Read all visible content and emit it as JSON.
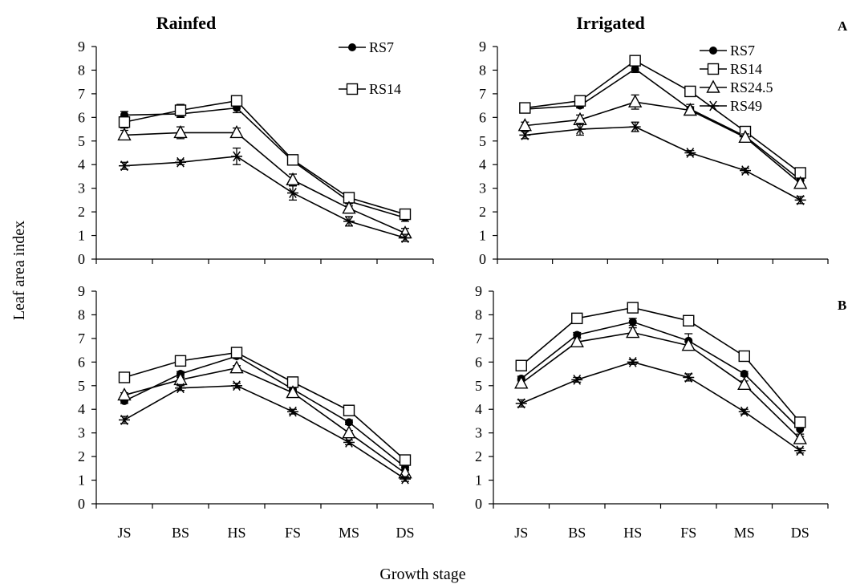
{
  "figure": {
    "col_titles": [
      "Rainfed",
      "Irrigated"
    ],
    "row_labels": [
      "A",
      "B"
    ],
    "ylabel": "Leaf area index",
    "xlabel": "Growth stage"
  },
  "chart_data": [
    {
      "type": "line",
      "row": "A",
      "column": "Rainfed",
      "categories": [
        "JS",
        "BS",
        "HS",
        "FS",
        "MS",
        "DS"
      ],
      "ylim": [
        0,
        9
      ],
      "yticks": [
        0,
        1,
        2,
        3,
        4,
        5,
        6,
        7,
        8,
        9
      ],
      "legend": [
        "RS7",
        "RS14"
      ],
      "series": [
        {
          "name": "RS7",
          "marker": "circle",
          "values": [
            6.1,
            6.15,
            6.4,
            4.15,
            2.45,
            1.75
          ],
          "errors": [
            0.15,
            0.15,
            0.2,
            0.15,
            0.2,
            0.15
          ]
        },
        {
          "name": "RS14",
          "marker": "square",
          "values": [
            5.8,
            6.3,
            6.7,
            4.2,
            2.6,
            1.9
          ],
          "errors": [
            0.25,
            0.25,
            0.2,
            0.1,
            0.15,
            0.1
          ]
        },
        {
          "name": "RS24.5",
          "marker": "triangle",
          "values": [
            5.25,
            5.35,
            5.35,
            3.35,
            2.15,
            1.1
          ],
          "errors": [
            0.2,
            0.25,
            0.2,
            0.25,
            0.2,
            0.2
          ]
        },
        {
          "name": "RS49",
          "marker": "asterisk",
          "values": [
            3.95,
            4.1,
            4.35,
            2.8,
            1.6,
            0.9
          ],
          "errors": [
            0.15,
            0.1,
            0.35,
            0.3,
            0.2,
            0.15
          ]
        }
      ]
    },
    {
      "type": "line",
      "row": "A",
      "column": "Irrigated",
      "categories": [
        "JS",
        "BS",
        "HS",
        "FS",
        "MS",
        "DS"
      ],
      "ylim": [
        0,
        9
      ],
      "yticks": [
        0,
        1,
        2,
        3,
        4,
        5,
        6,
        7,
        8,
        9
      ],
      "legend": [
        "RS7",
        "RS14",
        "RS24.5",
        "RS49"
      ],
      "series": [
        {
          "name": "RS7",
          "marker": "circle",
          "values": [
            6.35,
            6.5,
            8.05,
            6.35,
            5.2,
            3.35
          ],
          "errors": [
            0.1,
            0.1,
            0.15,
            0.2,
            0.1,
            0.2
          ]
        },
        {
          "name": "RS14",
          "marker": "square",
          "values": [
            6.4,
            6.7,
            8.4,
            7.1,
            5.4,
            3.65
          ],
          "errors": [
            0.1,
            0.1,
            0.15,
            0.15,
            0.1,
            0.1
          ]
        },
        {
          "name": "RS24.5",
          "marker": "triangle",
          "values": [
            5.65,
            5.9,
            6.65,
            6.3,
            5.15,
            3.2
          ],
          "errors": [
            0.15,
            0.2,
            0.3,
            0.15,
            0.15,
            0.15
          ]
        },
        {
          "name": "RS49",
          "marker": "asterisk",
          "values": [
            5.25,
            5.5,
            5.6,
            4.5,
            3.75,
            2.5
          ],
          "errors": [
            0.15,
            0.25,
            0.2,
            0.1,
            0.1,
            0.15
          ]
        }
      ]
    },
    {
      "type": "line",
      "row": "B",
      "column": "Rainfed",
      "categories": [
        "JS",
        "BS",
        "HS",
        "FS",
        "MS",
        "DS"
      ],
      "ylim": [
        0,
        9
      ],
      "yticks": [
        0,
        1,
        2,
        3,
        4,
        5,
        6,
        7,
        8,
        9
      ],
      "legend": [],
      "series": [
        {
          "name": "RS7",
          "marker": "circle",
          "values": [
            4.35,
            5.5,
            6.25,
            4.85,
            3.45,
            1.55
          ],
          "errors": [
            0.1,
            0.1,
            0.1,
            0.1,
            0.1,
            0.1
          ]
        },
        {
          "name": "RS14",
          "marker": "square",
          "values": [
            5.35,
            6.05,
            6.4,
            5.15,
            3.95,
            1.85
          ],
          "errors": [
            0.1,
            0.15,
            0.1,
            0.1,
            0.1,
            0.1
          ]
        },
        {
          "name": "RS24.5",
          "marker": "triangle",
          "values": [
            4.6,
            5.25,
            5.75,
            4.7,
            3.0,
            1.3
          ],
          "errors": [
            0.1,
            0.1,
            0.1,
            0.1,
            0.1,
            0.1
          ]
        },
        {
          "name": "RS49",
          "marker": "asterisk",
          "values": [
            3.55,
            4.9,
            5.0,
            3.9,
            2.6,
            1.05
          ],
          "errors": [
            0.15,
            0.1,
            0.1,
            0.1,
            0.1,
            0.1
          ]
        }
      ]
    },
    {
      "type": "line",
      "row": "B",
      "column": "Irrigated",
      "categories": [
        "JS",
        "BS",
        "HS",
        "FS",
        "MS",
        "DS"
      ],
      "ylim": [
        0,
        9
      ],
      "yticks": [
        0,
        1,
        2,
        3,
        4,
        5,
        6,
        7,
        8,
        9
      ],
      "legend": [],
      "series": [
        {
          "name": "RS7",
          "marker": "circle",
          "values": [
            5.3,
            7.15,
            7.7,
            6.9,
            5.5,
            3.15
          ],
          "errors": [
            0.1,
            0.1,
            0.15,
            0.3,
            0.1,
            0.3
          ]
        },
        {
          "name": "RS14",
          "marker": "square",
          "values": [
            5.85,
            7.85,
            8.3,
            7.75,
            6.25,
            3.45
          ],
          "errors": [
            0.1,
            0.15,
            0.15,
            0.15,
            0.1,
            0.15
          ]
        },
        {
          "name": "RS24.5",
          "marker": "triangle",
          "values": [
            5.1,
            6.85,
            7.25,
            6.7,
            5.05,
            2.75
          ],
          "errors": [
            0.15,
            0.15,
            0.2,
            0.15,
            0.15,
            0.2
          ]
        },
        {
          "name": "RS49",
          "marker": "asterisk",
          "values": [
            4.25,
            5.25,
            6.0,
            5.35,
            3.9,
            2.25
          ],
          "errors": [
            0.15,
            0.1,
            0.1,
            0.15,
            0.1,
            0.1
          ]
        }
      ]
    }
  ]
}
